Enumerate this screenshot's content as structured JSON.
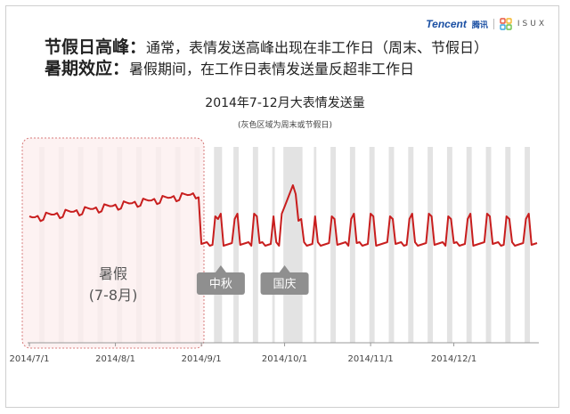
{
  "logo": {
    "brand": "Tencent",
    "brand_cn": "腾讯",
    "partner": "ISUX"
  },
  "headline": {
    "point1_label": "节假日高峰：",
    "point1_text": "通常，表情发送高峰出现在非工作日（周末、节假日）",
    "point2_label": "暑期效应：",
    "point2_text": "暑假期间，在工作日表情发送量反超非工作日"
  },
  "chart_data": {
    "type": "line",
    "title": "2014年7-12月大表情发送量",
    "subtitle": "(灰色区域为周末或节假日)",
    "xlabel": "",
    "ylabel": "",
    "x_range": [
      "2014-07-01",
      "2014-12-31"
    ],
    "x_ticks": [
      "2014/7/1",
      "2014/8/1",
      "2014/9/1",
      "2014/10/1",
      "2014/11/1",
      "2014/12/1"
    ],
    "y_axis_shown": false,
    "grid": false,
    "shaded_periods": "weekends and public holidays (grey bands)",
    "highlight_region": {
      "label": "暑假",
      "sublabel": "(7-8月)",
      "from": "2014-07-01",
      "to": "2014-08-31"
    },
    "annotations": [
      {
        "label": "中秋",
        "date": "2014-09-08"
      },
      {
        "label": "国庆",
        "date": "2014-10-01"
      }
    ],
    "series": [
      {
        "color": "#c81e1e",
        "note": "relative volume, no printed scale"
      }
    ]
  },
  "colors": {
    "line": "#c81e1e",
    "band": "#e3e3e3",
    "summer_fill": "#fdeeee",
    "summer_border": "#d77b7b",
    "callout": "#8f8f8f"
  }
}
